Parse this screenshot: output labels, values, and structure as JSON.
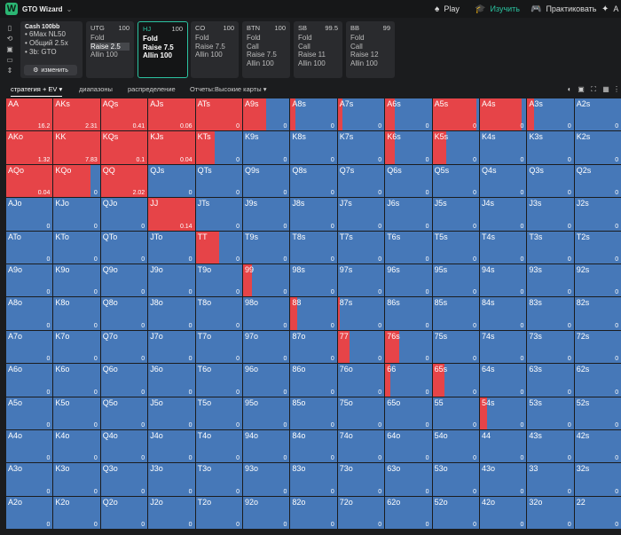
{
  "app": {
    "title": "GTO Wizard",
    "logo_letter": "W"
  },
  "nav": {
    "play": "Play",
    "learn": "Изучить",
    "practice": "Практиковать",
    "more": "A"
  },
  "info": {
    "title": "Cash 100bb",
    "lines": [
      "• 6Max NL50",
      "• Общий 2.5x",
      "• 3b: GTO"
    ],
    "change": "изменить"
  },
  "positions": [
    {
      "name": "UTG",
      "stack": "100",
      "actions": [
        "Fold",
        "Raise 2.5",
        "Allin 100"
      ],
      "highlight": 1,
      "selected": false
    },
    {
      "name": "HJ",
      "stack": "100",
      "actions": [
        "Fold",
        "Raise 7.5",
        "Allin 100"
      ],
      "highlight": -1,
      "selected": true
    },
    {
      "name": "CO",
      "stack": "100",
      "actions": [
        "Fold",
        "Raise 7.5",
        "Allin 100"
      ],
      "highlight": -1,
      "selected": false
    },
    {
      "name": "BTN",
      "stack": "100",
      "actions": [
        "Fold",
        "Call",
        "Raise 7.5",
        "Allin 100"
      ],
      "highlight": -1,
      "selected": false
    },
    {
      "name": "SB",
      "stack": "99.5",
      "actions": [
        "Fold",
        "Call",
        "Raise 11",
        "Allin 100"
      ],
      "highlight": -1,
      "selected": false
    },
    {
      "name": "BB",
      "stack": "99",
      "actions": [
        "Fold",
        "Call",
        "Raise 12",
        "Allin 100"
      ],
      "highlight": -1,
      "selected": false
    }
  ],
  "tabs": {
    "strategy": "стратегия + EV",
    "ranges": "диапазоны",
    "distribution": "распределение",
    "reports": "Отчеты:Высокие карты"
  },
  "colors": {
    "raise": "#e64448",
    "fold": "#4678b8",
    "accent": "#2bc3a0"
  },
  "ranks": [
    "A",
    "K",
    "Q",
    "J",
    "T",
    "9",
    "8",
    "7",
    "6",
    "5",
    "4",
    "3",
    "2"
  ],
  "grid": {
    "rows": [
      [
        [
          1,
          "16.2"
        ],
        [
          1,
          "2.31"
        ],
        [
          1,
          "0.41"
        ],
        [
          1,
          "0.06"
        ],
        [
          1,
          "0"
        ],
        [
          0.5,
          "0"
        ],
        [
          0.1,
          "0"
        ],
        [
          0.1,
          "0"
        ],
        [
          0.2,
          "0"
        ],
        [
          0.95,
          "0"
        ],
        [
          0.9,
          "0"
        ],
        [
          0.15,
          "0"
        ],
        [
          0,
          "0"
        ]
      ],
      [
        [
          1,
          "1.32"
        ],
        [
          1,
          "7.83"
        ],
        [
          1,
          "0.1"
        ],
        [
          1,
          "0.04"
        ],
        [
          0.4,
          "0"
        ],
        [
          0,
          "0"
        ],
        [
          0,
          "0"
        ],
        [
          0,
          "0"
        ],
        [
          0.2,
          "0"
        ],
        [
          0.3,
          "0"
        ],
        [
          0,
          "0"
        ],
        [
          0,
          "0"
        ],
        [
          0,
          "0"
        ]
      ],
      [
        [
          1,
          "0.04"
        ],
        [
          0.8,
          "0"
        ],
        [
          1,
          "2.02"
        ],
        [
          0,
          "0"
        ],
        [
          0,
          "0"
        ],
        [
          0,
          "0"
        ],
        [
          0,
          "0"
        ],
        [
          0,
          "0"
        ],
        [
          0,
          "0"
        ],
        [
          0,
          "0"
        ],
        [
          0,
          "0"
        ],
        [
          0,
          "0"
        ],
        [
          0,
          "0"
        ]
      ],
      [
        [
          0,
          "0"
        ],
        [
          0,
          "0"
        ],
        [
          0,
          "0"
        ],
        [
          1,
          "0.14"
        ],
        [
          0,
          "0"
        ],
        [
          0,
          "0"
        ],
        [
          0,
          "0"
        ],
        [
          0,
          "0"
        ],
        [
          0,
          "0"
        ],
        [
          0,
          "0"
        ],
        [
          0,
          "0"
        ],
        [
          0,
          "0"
        ],
        [
          0,
          "0"
        ]
      ],
      [
        [
          0,
          "0"
        ],
        [
          0,
          "0"
        ],
        [
          0,
          "0"
        ],
        [
          0,
          "0"
        ],
        [
          0.5,
          "0"
        ],
        [
          0,
          "0"
        ],
        [
          0,
          "0"
        ],
        [
          0,
          "0"
        ],
        [
          0,
          "0"
        ],
        [
          0,
          "0"
        ],
        [
          0,
          "0"
        ],
        [
          0,
          "0"
        ],
        [
          0,
          "0"
        ]
      ],
      [
        [
          0,
          "0"
        ],
        [
          0,
          "0"
        ],
        [
          0,
          "0"
        ],
        [
          0,
          "0"
        ],
        [
          0,
          "0"
        ],
        [
          0.2,
          "0"
        ],
        [
          0,
          "0"
        ],
        [
          0,
          "0"
        ],
        [
          0,
          "0"
        ],
        [
          0,
          "0"
        ],
        [
          0,
          "0"
        ],
        [
          0,
          "0"
        ],
        [
          0,
          "0"
        ]
      ],
      [
        [
          0,
          "0"
        ],
        [
          0,
          "0"
        ],
        [
          0,
          "0"
        ],
        [
          0,
          "0"
        ],
        [
          0,
          "0"
        ],
        [
          0,
          "0"
        ],
        [
          0.15,
          "0"
        ],
        [
          0.05,
          "0"
        ],
        [
          0,
          "0"
        ],
        [
          0,
          "0"
        ],
        [
          0,
          "0"
        ],
        [
          0,
          "0"
        ],
        [
          0,
          "0"
        ]
      ],
      [
        [
          0,
          "0"
        ],
        [
          0,
          "0"
        ],
        [
          0,
          "0"
        ],
        [
          0,
          "0"
        ],
        [
          0,
          "0"
        ],
        [
          0,
          "0"
        ],
        [
          0,
          "0"
        ],
        [
          0.25,
          "0"
        ],
        [
          0.3,
          "0"
        ],
        [
          0,
          "0"
        ],
        [
          0,
          "0"
        ],
        [
          0,
          "0"
        ],
        [
          0,
          "0"
        ]
      ],
      [
        [
          0,
          "0"
        ],
        [
          0,
          "0"
        ],
        [
          0,
          "0"
        ],
        [
          0,
          "0"
        ],
        [
          0,
          "0"
        ],
        [
          0,
          "0"
        ],
        [
          0,
          "0"
        ],
        [
          0,
          "0"
        ],
        [
          0.12,
          "0"
        ],
        [
          0.25,
          "0"
        ],
        [
          0,
          "0"
        ],
        [
          0,
          "0"
        ],
        [
          0,
          "0"
        ]
      ],
      [
        [
          0,
          "0"
        ],
        [
          0,
          "0"
        ],
        [
          0,
          "0"
        ],
        [
          0,
          "0"
        ],
        [
          0,
          "0"
        ],
        [
          0,
          "0"
        ],
        [
          0,
          "0"
        ],
        [
          0,
          "0"
        ],
        [
          0,
          "0"
        ],
        [
          0,
          "0"
        ],
        [
          0.15,
          "0"
        ],
        [
          0,
          "0"
        ],
        [
          0,
          "0"
        ]
      ],
      [
        [
          0,
          "0"
        ],
        [
          0,
          "0"
        ],
        [
          0,
          "0"
        ],
        [
          0,
          "0"
        ],
        [
          0,
          "0"
        ],
        [
          0,
          "0"
        ],
        [
          0,
          "0"
        ],
        [
          0,
          "0"
        ],
        [
          0,
          "0"
        ],
        [
          0,
          "0"
        ],
        [
          0,
          "0"
        ],
        [
          0,
          "0"
        ],
        [
          0,
          "0"
        ]
      ],
      [
        [
          0,
          "0"
        ],
        [
          0,
          "0"
        ],
        [
          0,
          "0"
        ],
        [
          0,
          "0"
        ],
        [
          0,
          "0"
        ],
        [
          0,
          "0"
        ],
        [
          0,
          "0"
        ],
        [
          0,
          "0"
        ],
        [
          0,
          "0"
        ],
        [
          0,
          "0"
        ],
        [
          0,
          "0"
        ],
        [
          0,
          "0"
        ],
        [
          0,
          "0"
        ]
      ],
      [
        [
          0,
          "0"
        ],
        [
          0,
          "0"
        ],
        [
          0,
          "0"
        ],
        [
          0,
          "0"
        ],
        [
          0,
          "0"
        ],
        [
          0,
          "0"
        ],
        [
          0,
          "0"
        ],
        [
          0,
          "0"
        ],
        [
          0,
          "0"
        ],
        [
          0,
          "0"
        ],
        [
          0,
          "0"
        ],
        [
          0,
          "0"
        ],
        [
          0,
          "0"
        ]
      ]
    ]
  }
}
